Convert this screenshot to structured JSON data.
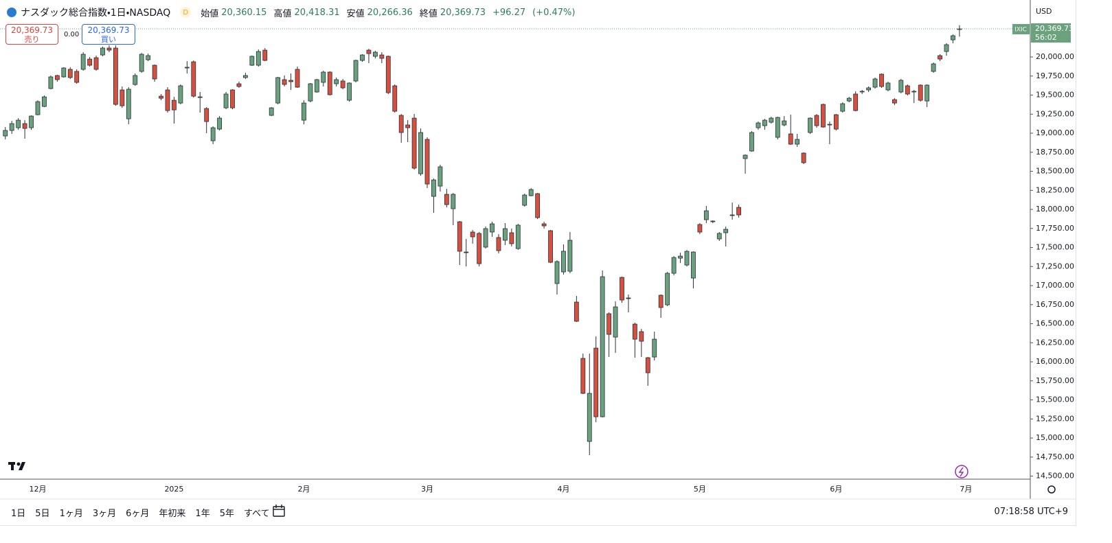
{
  "header": {
    "symbol": "ナスダック総合指数・1日・NASDAQ",
    "badge": "D",
    "open_label": "始値",
    "open": "20,360.15",
    "high_label": "高値",
    "high": "20,418.31",
    "low_label": "安値",
    "low": "20,266.36",
    "close_label": "終値",
    "close": "20,369.73",
    "change": "+96.27",
    "change_pct": "(+0.47%)"
  },
  "trade": {
    "sell_price": "20,369.73",
    "sell_label": "売り",
    "spread": "0.00",
    "buy_price": "20,369.73",
    "buy_label": "買い"
  },
  "price_axis": {
    "currency": "USD",
    "symbol_tag": "IXIC",
    "last_price": "20,369.73",
    "countdown": "56:02"
  },
  "toolbar": {
    "ranges": [
      "1日",
      "5日",
      "1ヶ月",
      "3ヶ月",
      "6ヶ月",
      "年初来",
      "1年",
      "5年",
      "すべて"
    ],
    "clock": "07:18:58 UTC+9"
  },
  "chart_data": {
    "type": "candlestick",
    "up_color": "#6aa27e",
    "down_color": "#d5503f",
    "grid": false,
    "ylim": [
      14460,
      20748
    ],
    "yticks": [
      {
        "value": 14500,
        "label": "14,500.00"
      },
      {
        "value": 14750,
        "label": "14,750.00"
      },
      {
        "value": 15000,
        "label": "15,000.00"
      },
      {
        "value": 15250,
        "label": "15,250.00"
      },
      {
        "value": 15500,
        "label": "15,500.00"
      },
      {
        "value": 15750,
        "label": "15,750.00"
      },
      {
        "value": 16000,
        "label": "16,000.00"
      },
      {
        "value": 16250,
        "label": "16,250.00"
      },
      {
        "value": 16500,
        "label": "16,500.00"
      },
      {
        "value": 16750,
        "label": "16,750.00"
      },
      {
        "value": 17000,
        "label": "17,000.00"
      },
      {
        "value": 17250,
        "label": "17,250.00"
      },
      {
        "value": 17500,
        "label": "17,500.00"
      },
      {
        "value": 17750,
        "label": "17,750.00"
      },
      {
        "value": 18000,
        "label": "18,000.00"
      },
      {
        "value": 18250,
        "label": "18,250.00"
      },
      {
        "value": 18500,
        "label": "18,500.00"
      },
      {
        "value": 18750,
        "label": "18,750.00"
      },
      {
        "value": 19000,
        "label": "19,000.00"
      },
      {
        "value": 19250,
        "label": "19,250.00"
      },
      {
        "value": 19500,
        "label": "19,500.00"
      },
      {
        "value": 19750,
        "label": "19,750.00"
      },
      {
        "value": 20000,
        "label": "20,000.00"
      }
    ],
    "categories": [
      null,
      null,
      null,
      null,
      null,
      "12月",
      null,
      null,
      null,
      null,
      null,
      null,
      null,
      null,
      null,
      null,
      null,
      null,
      null,
      null,
      null,
      null,
      null,
      null,
      null,
      null,
      "2025",
      null,
      null,
      null,
      null,
      null,
      null,
      null,
      null,
      null,
      null,
      null,
      null,
      null,
      null,
      null,
      null,
      null,
      null,
      null,
      "2月",
      null,
      null,
      null,
      null,
      null,
      null,
      null,
      null,
      null,
      null,
      null,
      null,
      null,
      null,
      null,
      null,
      null,
      null,
      "3月",
      null,
      null,
      null,
      null,
      null,
      null,
      null,
      null,
      null,
      null,
      null,
      null,
      null,
      null,
      null,
      null,
      null,
      null,
      null,
      null,
      "4月",
      null,
      null,
      null,
      null,
      null,
      null,
      null,
      null,
      null,
      null,
      null,
      null,
      null,
      null,
      null,
      null,
      null,
      null,
      null,
      null,
      "5月",
      null,
      null,
      null,
      null,
      null,
      null,
      null,
      null,
      null,
      null,
      null,
      null,
      null,
      null,
      null,
      null,
      null,
      null,
      null,
      null,
      "6月",
      null,
      null,
      null,
      null,
      null,
      null,
      null,
      null,
      null,
      null,
      null,
      null,
      null,
      null,
      null,
      null,
      null,
      null,
      null,
      "7月"
    ],
    "open": [
      18964,
      19036,
      19072,
      19126,
      19072,
      19243,
      19351,
      19586,
      19757,
      19739,
      19838,
      19811,
      19838,
      19973,
      19991,
      20027,
      20117,
      20117,
      19568,
      19189,
      19639,
      19811,
      19964,
      19892,
      19486,
      19568,
      19432,
      19396,
      19856,
      19937,
      19477,
      19324,
      18901,
      19054,
      19333,
      19568,
      19649,
      19730,
      19892,
      19892,
      20090,
      19234,
      19396,
      19703,
      19694,
      19838,
      19171,
      19423,
      19541,
      19667,
      19802,
      19649,
      19685,
      19433,
      19685,
      19955,
      20090,
      20009,
      20027,
      20009,
      19622,
      19234,
      19108,
      19198,
      18468,
      18919,
      18171,
      18306,
      18198,
      18009,
      17838,
      17441,
      17703,
      17685,
      17505,
      17703,
      17631,
      17595,
      17694,
      17486,
      18054,
      18180,
      18207,
      17811,
      17721,
      17027,
      17180,
      17189,
      16784,
      16045,
      14955,
      16180,
      15279,
      16631,
      16324,
      17108,
      16838,
      16495,
      16396,
      16054,
      16063,
      16874,
      16748,
      17162,
      17360,
      17270,
      17099,
      17802,
      17865,
      17847,
      17613,
      17694,
      17928,
      18027,
      18667,
      18766,
      19072,
      19099,
      19144,
      18946,
      19108,
      18991,
      18856,
      18739,
      19009,
      19234,
      19378,
      19108,
      19243,
      19288,
      19423,
      19514,
      19541,
      19568,
      19604,
      19775,
      19568,
      19441,
      19541,
      19622,
      19541,
      19631,
      19423,
      19811,
      20018,
      20072,
      20225,
      20360.15,
      null
    ],
    "high": [
      19081,
      19162,
      19198,
      19171,
      19234,
      19432,
      19495,
      19757,
      19766,
      19865,
      19865,
      19838,
      20063,
      20000,
      20018,
      20135,
      20153,
      20153,
      19613,
      19604,
      19784,
      20054,
      20045,
      19901,
      19513,
      19604,
      19477,
      19640,
      19946,
      19955,
      19541,
      19342,
      19090,
      19225,
      19541,
      19577,
      19676,
      19793,
      20018,
      20099,
      20117,
      19342,
      19739,
      19757,
      19784,
      19874,
      19432,
      19658,
      19712,
      19820,
      19811,
      19730,
      19712,
      19667,
      19964,
      20036,
      20108,
      20081,
      20063,
      20018,
      19640,
      19252,
      19171,
      19252,
      19063,
      18946,
      18405,
      18586,
      18270,
      18216,
      17847,
      17612,
      17730,
      17703,
      17775,
      17838,
      17676,
      17820,
      17748,
      17811,
      18207,
      18279,
      18216,
      17838,
      17730,
      17333,
      17541,
      17703,
      16865,
      16108,
      16108,
      16333,
      17199,
      16649,
      16793,
      17117,
      16883,
      16514,
      16432,
      16063,
      16396,
      16883,
      17180,
      17387,
      17432,
      17468,
      17450,
      17820,
      18045,
      17856,
      17703,
      17775,
      18090,
      18063,
      18721,
      19027,
      19153,
      19189,
      19216,
      19216,
      19225,
      19243,
      18991,
      18748,
      19207,
      19252,
      19387,
      19153,
      19252,
      19405,
      19477,
      19550,
      19568,
      19613,
      19730,
      19784,
      19676,
      19459,
      19712,
      19640,
      19568,
      19640,
      19640,
      19928,
      20036,
      20180,
      20297,
      20418.31,
      null
    ],
    "low": [
      18919,
      18991,
      19045,
      18928,
      19045,
      19234,
      19342,
      19577,
      19676,
      19730,
      19712,
      19649,
      19820,
      19874,
      19820,
      20009,
      20063,
      19360,
      19333,
      19117,
      19622,
      19793,
      19946,
      19676,
      19432,
      19270,
      19126,
      19378,
      19784,
      19468,
      19270,
      19000,
      18856,
      19036,
      19315,
      19315,
      19595,
      19712,
      19883,
      19874,
      19946,
      19225,
      19378,
      19613,
      19568,
      19595,
      19117,
      19405,
      19532,
      19613,
      19496,
      19613,
      19577,
      19414,
      19667,
      19937,
      19919,
      19982,
      19919,
      19514,
      19270,
      18874,
      18883,
      18523,
      18441,
      18279,
      17955,
      18234,
      18027,
      17793,
      17270,
      17252,
      17550,
      17252,
      17486,
      17640,
      17423,
      17532,
      17514,
      17468,
      18036,
      18171,
      17874,
      17748,
      17297,
      16883,
      17144,
      17162,
      16523,
      15577,
      14775,
      15207,
      15270,
      16063,
      16117,
      16775,
      16649,
      16054,
      16063,
      15685,
      16018,
      16577,
      16730,
      17135,
      17297,
      17252,
      16963,
      17676,
      17820,
      17820,
      17586,
      17514,
      17865,
      17892,
      18468,
      18757,
      19045,
      19045,
      19126,
      18919,
      19090,
      18847,
      18820,
      18595,
      18991,
      19072,
      19072,
      18856,
      19036,
      19270,
      19405,
      19288,
      19514,
      19541,
      19586,
      19595,
      19550,
      19369,
      19523,
      19496,
      19396,
      19414,
      19342,
      19793,
      19946,
      20018,
      20180,
      20266.36,
      null
    ],
    "close": [
      19036,
      19126,
      19171,
      19063,
      19225,
      19414,
      19477,
      19739,
      19703,
      19856,
      19730,
      19667,
      20036,
      19892,
      19838,
      20117,
      20090,
      19378,
      19360,
      19577,
      19757,
      20036,
      20018,
      19712,
      19459,
      19297,
      19306,
      19622,
      19865,
      19486,
      19468,
      19153,
      19072,
      19198,
      19514,
      19333,
      19613,
      19757,
      20009,
      20072,
      19955,
      19333,
      19730,
      19640,
      19676,
      19604,
      19396,
      19649,
      19703,
      19802,
      19505,
      19703,
      19595,
      19658,
      19955,
      20027,
      20045,
      20063,
      19982,
      19532,
      19288,
      19009,
      19072,
      18541,
      19009,
      18333,
      18387,
      18559,
      18063,
      18198,
      17451,
      17432,
      17640,
      17288,
      17748,
      17811,
      17459,
      17748,
      17550,
      17793,
      18189,
      18261,
      17892,
      17784,
      17306,
      17315,
      17451,
      17595,
      16532,
      15586,
      15586,
      15279,
      17117,
      16360,
      16721,
      16811,
      16829,
      16297,
      16270,
      15856,
      16297,
      16712,
      17162,
      17369,
      17387,
      17450,
      17441,
      17703,
      17982,
      17838,
      17685,
      17739,
      17928,
      17928,
      18712,
      19009,
      19135,
      19171,
      19198,
      19207,
      19162,
      18856,
      18919,
      18613,
      19198,
      19099,
      19081,
      19117,
      19054,
      19387,
      19459,
      19297,
      19550,
      19595,
      19712,
      19613,
      19658,
      19396,
      19694,
      19514,
      19550,
      19432,
      19631,
      19910,
      19973,
      20162,
      20279,
      20369.73,
      null
    ]
  }
}
